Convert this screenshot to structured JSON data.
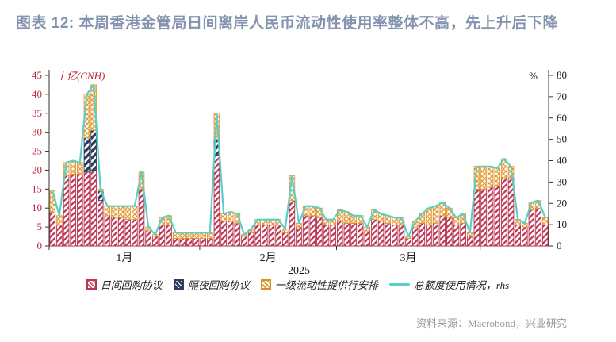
{
  "header": {
    "title": "图表 12: 本周香港金管局日间离岸人民币流动性使用率整体不高，先上升后下降"
  },
  "chart_data": {
    "type": "bar",
    "subtype": "stacked-bar-with-line",
    "title": "香港金管局日间离岸人民币流动性使用",
    "left_axis": {
      "unit": "十亿(CNH)",
      "min": 0,
      "max": 45,
      "step": 5,
      "color": "#c0253c"
    },
    "right_axis": {
      "unit": "%",
      "min": 0,
      "max": 80,
      "step": 10,
      "color": "#1a1a1a"
    },
    "x_axis": {
      "year_label": "2025",
      "months": [
        {
          "label": "1月",
          "bars": 22
        },
        {
          "label": "2月",
          "bars": 20
        },
        {
          "label": "3月",
          "bars": 21
        },
        {
          "label": "",
          "bars": 10
        }
      ]
    },
    "series": [
      {
        "name": "日间回购协议",
        "type": "bar-stack",
        "color": "#bb3552",
        "pattern": "diagonal"
      },
      {
        "name": "隔夜回购协议",
        "type": "bar-stack",
        "color": "#2e3e5e",
        "pattern": "diagonal"
      },
      {
        "name": "一级流动性提供行安排",
        "type": "bar-stack",
        "color": "#e39b35",
        "pattern": "crosshatch"
      },
      {
        "name": "总额度使用情况，rhs",
        "type": "line",
        "color": "#5bcfc5",
        "axis": "right"
      }
    ],
    "bars_legend": "[日间回购协议, 隔夜回购协议, 一级流动性提供行安排] in 十亿 CNH per trading day",
    "bars": [
      [
        9,
        0,
        5.5
      ],
      [
        5.5,
        0,
        2.5
      ],
      [
        18.5,
        0,
        3.5
      ],
      [
        19,
        0,
        3.5
      ],
      [
        19,
        0,
        3
      ],
      [
        19.5,
        9,
        11.5
      ],
      [
        20,
        10.5,
        12
      ],
      [
        12,
        2.5,
        0.5
      ],
      [
        8,
        0,
        2.5
      ],
      [
        7.5,
        0,
        3
      ],
      [
        7.5,
        0,
        3
      ],
      [
        7,
        0,
        3.5
      ],
      [
        7,
        0,
        3.5
      ],
      [
        15,
        0,
        4.5
      ],
      [
        4,
        0,
        1
      ],
      [
        2.5,
        0,
        0.5
      ],
      [
        5.5,
        0,
        2
      ],
      [
        5.5,
        0,
        2.5
      ],
      [
        2,
        0,
        1.5
      ],
      [
        2,
        0,
        1.5
      ],
      [
        2,
        0,
        1.5
      ],
      [
        2,
        0,
        1.5
      ],
      [
        2,
        0,
        1.5
      ],
      [
        2,
        0,
        1.5
      ],
      [
        24,
        4,
        7
      ],
      [
        6.5,
        0,
        2
      ],
      [
        6.5,
        0,
        2.5
      ],
      [
        6,
        0,
        2.5
      ],
      [
        2.5,
        0,
        0.5
      ],
      [
        3.5,
        0,
        1
      ],
      [
        5.5,
        0,
        1.5
      ],
      [
        5.5,
        0,
        1.5
      ],
      [
        5.5,
        0,
        1.5
      ],
      [
        5.5,
        0,
        1.5
      ],
      [
        3.5,
        0,
        1
      ],
      [
        12,
        0,
        6.5
      ],
      [
        5,
        0,
        1
      ],
      [
        8,
        0,
        2.5
      ],
      [
        8,
        0,
        2.5
      ],
      [
        7.5,
        0,
        2.5
      ],
      [
        5.5,
        0,
        1.5
      ],
      [
        5.5,
        0,
        1.5
      ],
      [
        6.5,
        0,
        3
      ],
      [
        6,
        0,
        3
      ],
      [
        6,
        0,
        2
      ],
      [
        6,
        0,
        2
      ],
      [
        4,
        0,
        1
      ],
      [
        7,
        0,
        2.5
      ],
      [
        6.5,
        0,
        2
      ],
      [
        6,
        0,
        2
      ],
      [
        5.5,
        0,
        2
      ],
      [
        5.5,
        0,
        2
      ],
      [
        2,
        0,
        0.5
      ],
      [
        5,
        0,
        1.5
      ],
      [
        6,
        0,
        2.5
      ],
      [
        5.5,
        0,
        4.5
      ],
      [
        6,
        0,
        4.5
      ],
      [
        8,
        0,
        3.5
      ],
      [
        7.5,
        0,
        2.5
      ],
      [
        5.5,
        0,
        2
      ],
      [
        6,
        0,
        2.5
      ],
      [
        2.5,
        0,
        1
      ],
      [
        15,
        0,
        6
      ],
      [
        15,
        0,
        6
      ],
      [
        15.5,
        0,
        5.5
      ],
      [
        16,
        0,
        4.5
      ],
      [
        18,
        0,
        5
      ],
      [
        18,
        0,
        3
      ],
      [
        5.5,
        0,
        1.5
      ],
      [
        5,
        0,
        1
      ],
      [
        9.5,
        0,
        2
      ],
      [
        10,
        0,
        2
      ],
      [
        5.5,
        0,
        2
      ]
    ],
    "usage_rhs": [
      25.8,
      14.2,
      39.1,
      40,
      39.1,
      71.1,
      75.6,
      26.7,
      18.7,
      18.7,
      18.7,
      18.7,
      18.7,
      34.7,
      8.9,
      5.3,
      13.3,
      14.2,
      6.2,
      6.2,
      6.2,
      6.2,
      6.2,
      6.2,
      62.2,
      15.1,
      16,
      15.1,
      5.3,
      8,
      12.4,
      12.4,
      12.4,
      12.4,
      8,
      32.9,
      10.7,
      18.7,
      18.7,
      17.8,
      12.4,
      12.4,
      16.9,
      16,
      14.2,
      14.2,
      8.9,
      16.9,
      15.1,
      14.2,
      13.3,
      13.3,
      4.4,
      11.6,
      15.1,
      17.8,
      18.7,
      20.4,
      17.8,
      13.3,
      15.1,
      6.2,
      37.3,
      37.3,
      37.3,
      36.4,
      40.9,
      37.3,
      12.4,
      10.7,
      20.4,
      21.3,
      13.3
    ]
  },
  "footer": {
    "source": "资料来源：Macrobond，兴业研究"
  }
}
